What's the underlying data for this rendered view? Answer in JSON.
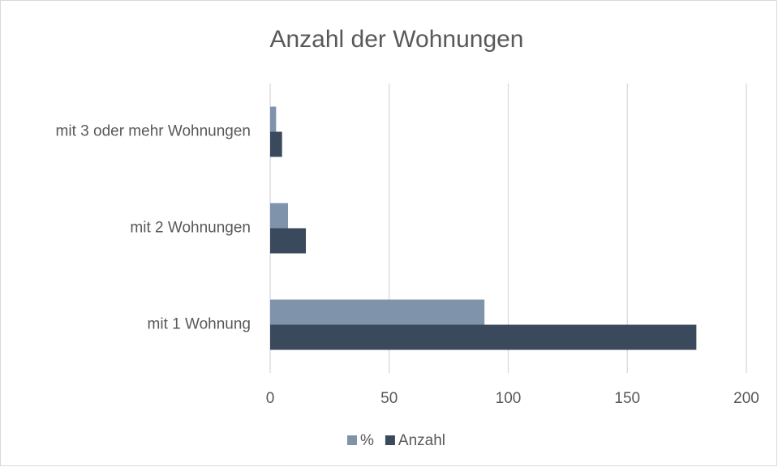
{
  "chart_data": {
    "type": "bar",
    "orientation": "horizontal",
    "title": "Anzahl der Wohnungen",
    "categories": [
      "mit 1 Wohnung",
      "mit 2 Wohnungen",
      "mit 3 oder mehr Wohnungen"
    ],
    "series": [
      {
        "name": "%",
        "color": "#7f93ab",
        "values": [
          90,
          7.5,
          2.5
        ]
      },
      {
        "name": "Anzahl",
        "color": "#3a4a5c",
        "values": [
          179,
          15,
          5
        ]
      }
    ],
    "xlim": [
      0,
      200
    ],
    "xticks": [
      0,
      50,
      100,
      150,
      200
    ],
    "grid": true,
    "legend": "bottom"
  }
}
